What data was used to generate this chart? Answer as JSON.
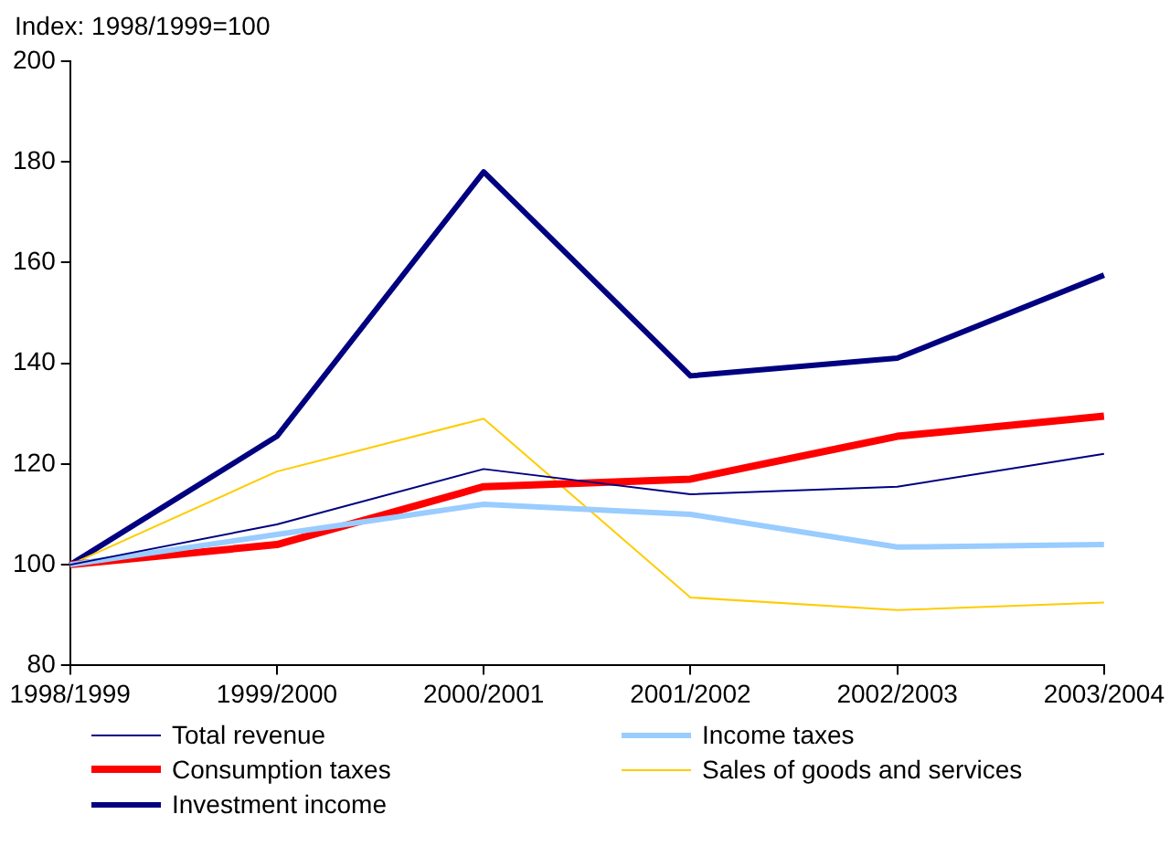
{
  "chart_data": {
    "type": "line",
    "ylabel": "Index: 1998/1999=100",
    "categories": [
      "1998/1999",
      "1999/2000",
      "2000/2001",
      "2001/2002",
      "2002/2003",
      "2003/2004"
    ],
    "ylim": [
      80,
      200
    ],
    "yticks": [
      80,
      100,
      120,
      140,
      160,
      180,
      200
    ],
    "grid": false,
    "legend": "bottom",
    "marker": "none",
    "series": [
      {
        "name": "Total revenue",
        "color": "#000080",
        "values": [
          100,
          108,
          119,
          114,
          115.5,
          122
        ]
      },
      {
        "name": "Income taxes",
        "color": "#99ccff",
        "values": [
          100,
          106,
          112,
          110,
          103.5,
          104
        ]
      },
      {
        "name": "Consumption taxes",
        "color": "#ff0000",
        "values": [
          100,
          104,
          115.5,
          117,
          125.5,
          129.5
        ]
      },
      {
        "name": "Sales of goods and services",
        "color": "#ffcc00",
        "values": [
          100,
          118.5,
          129,
          93.5,
          91,
          92.5
        ]
      },
      {
        "name": "Investment income",
        "color": "#000080",
        "values": [
          100,
          125.5,
          178,
          137.5,
          141,
          157.5
        ]
      }
    ]
  }
}
